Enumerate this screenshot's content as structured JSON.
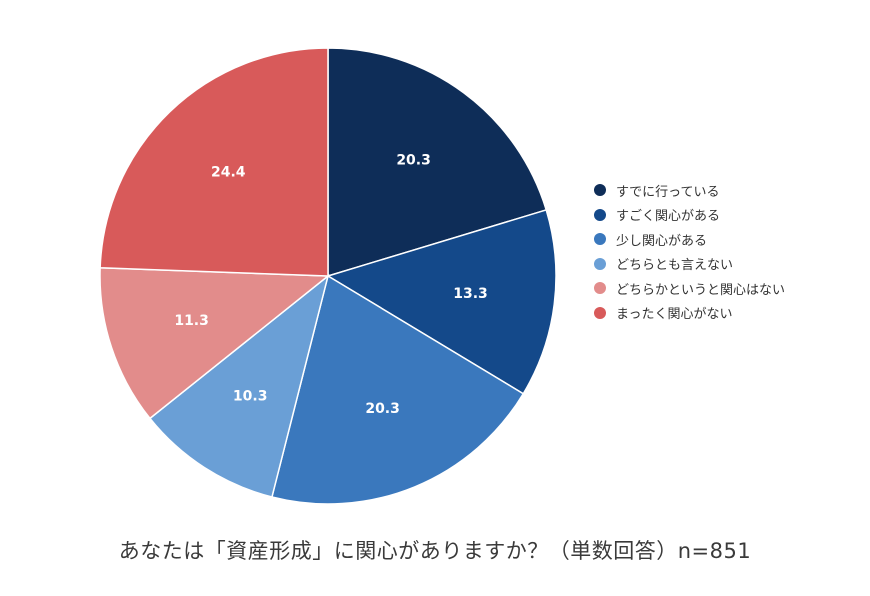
{
  "chart_data": {
    "type": "pie",
    "slices": [
      {
        "label": "すでに行っている",
        "value": 20.3,
        "color": "#0e2d58"
      },
      {
        "label": "すごく関心がある",
        "value": 13.3,
        "color": "#14498a"
      },
      {
        "label": "少し関心がある",
        "value": 20.3,
        "color": "#3a78bd"
      },
      {
        "label": "どちらとも言えない",
        "value": 10.3,
        "color": "#6a9fd6"
      },
      {
        "label": "どちらかというと関心はない",
        "value": 11.3,
        "color": "#e28c8b"
      },
      {
        "label": "まったく関心がない",
        "value": 24.4,
        "color": "#d85a5a"
      }
    ],
    "start": "12 o'clock",
    "direction": "clockwise",
    "legend_position": "right"
  },
  "caption": "あなたは「資産形成」に関心がありますか？（単数回答）n=851"
}
